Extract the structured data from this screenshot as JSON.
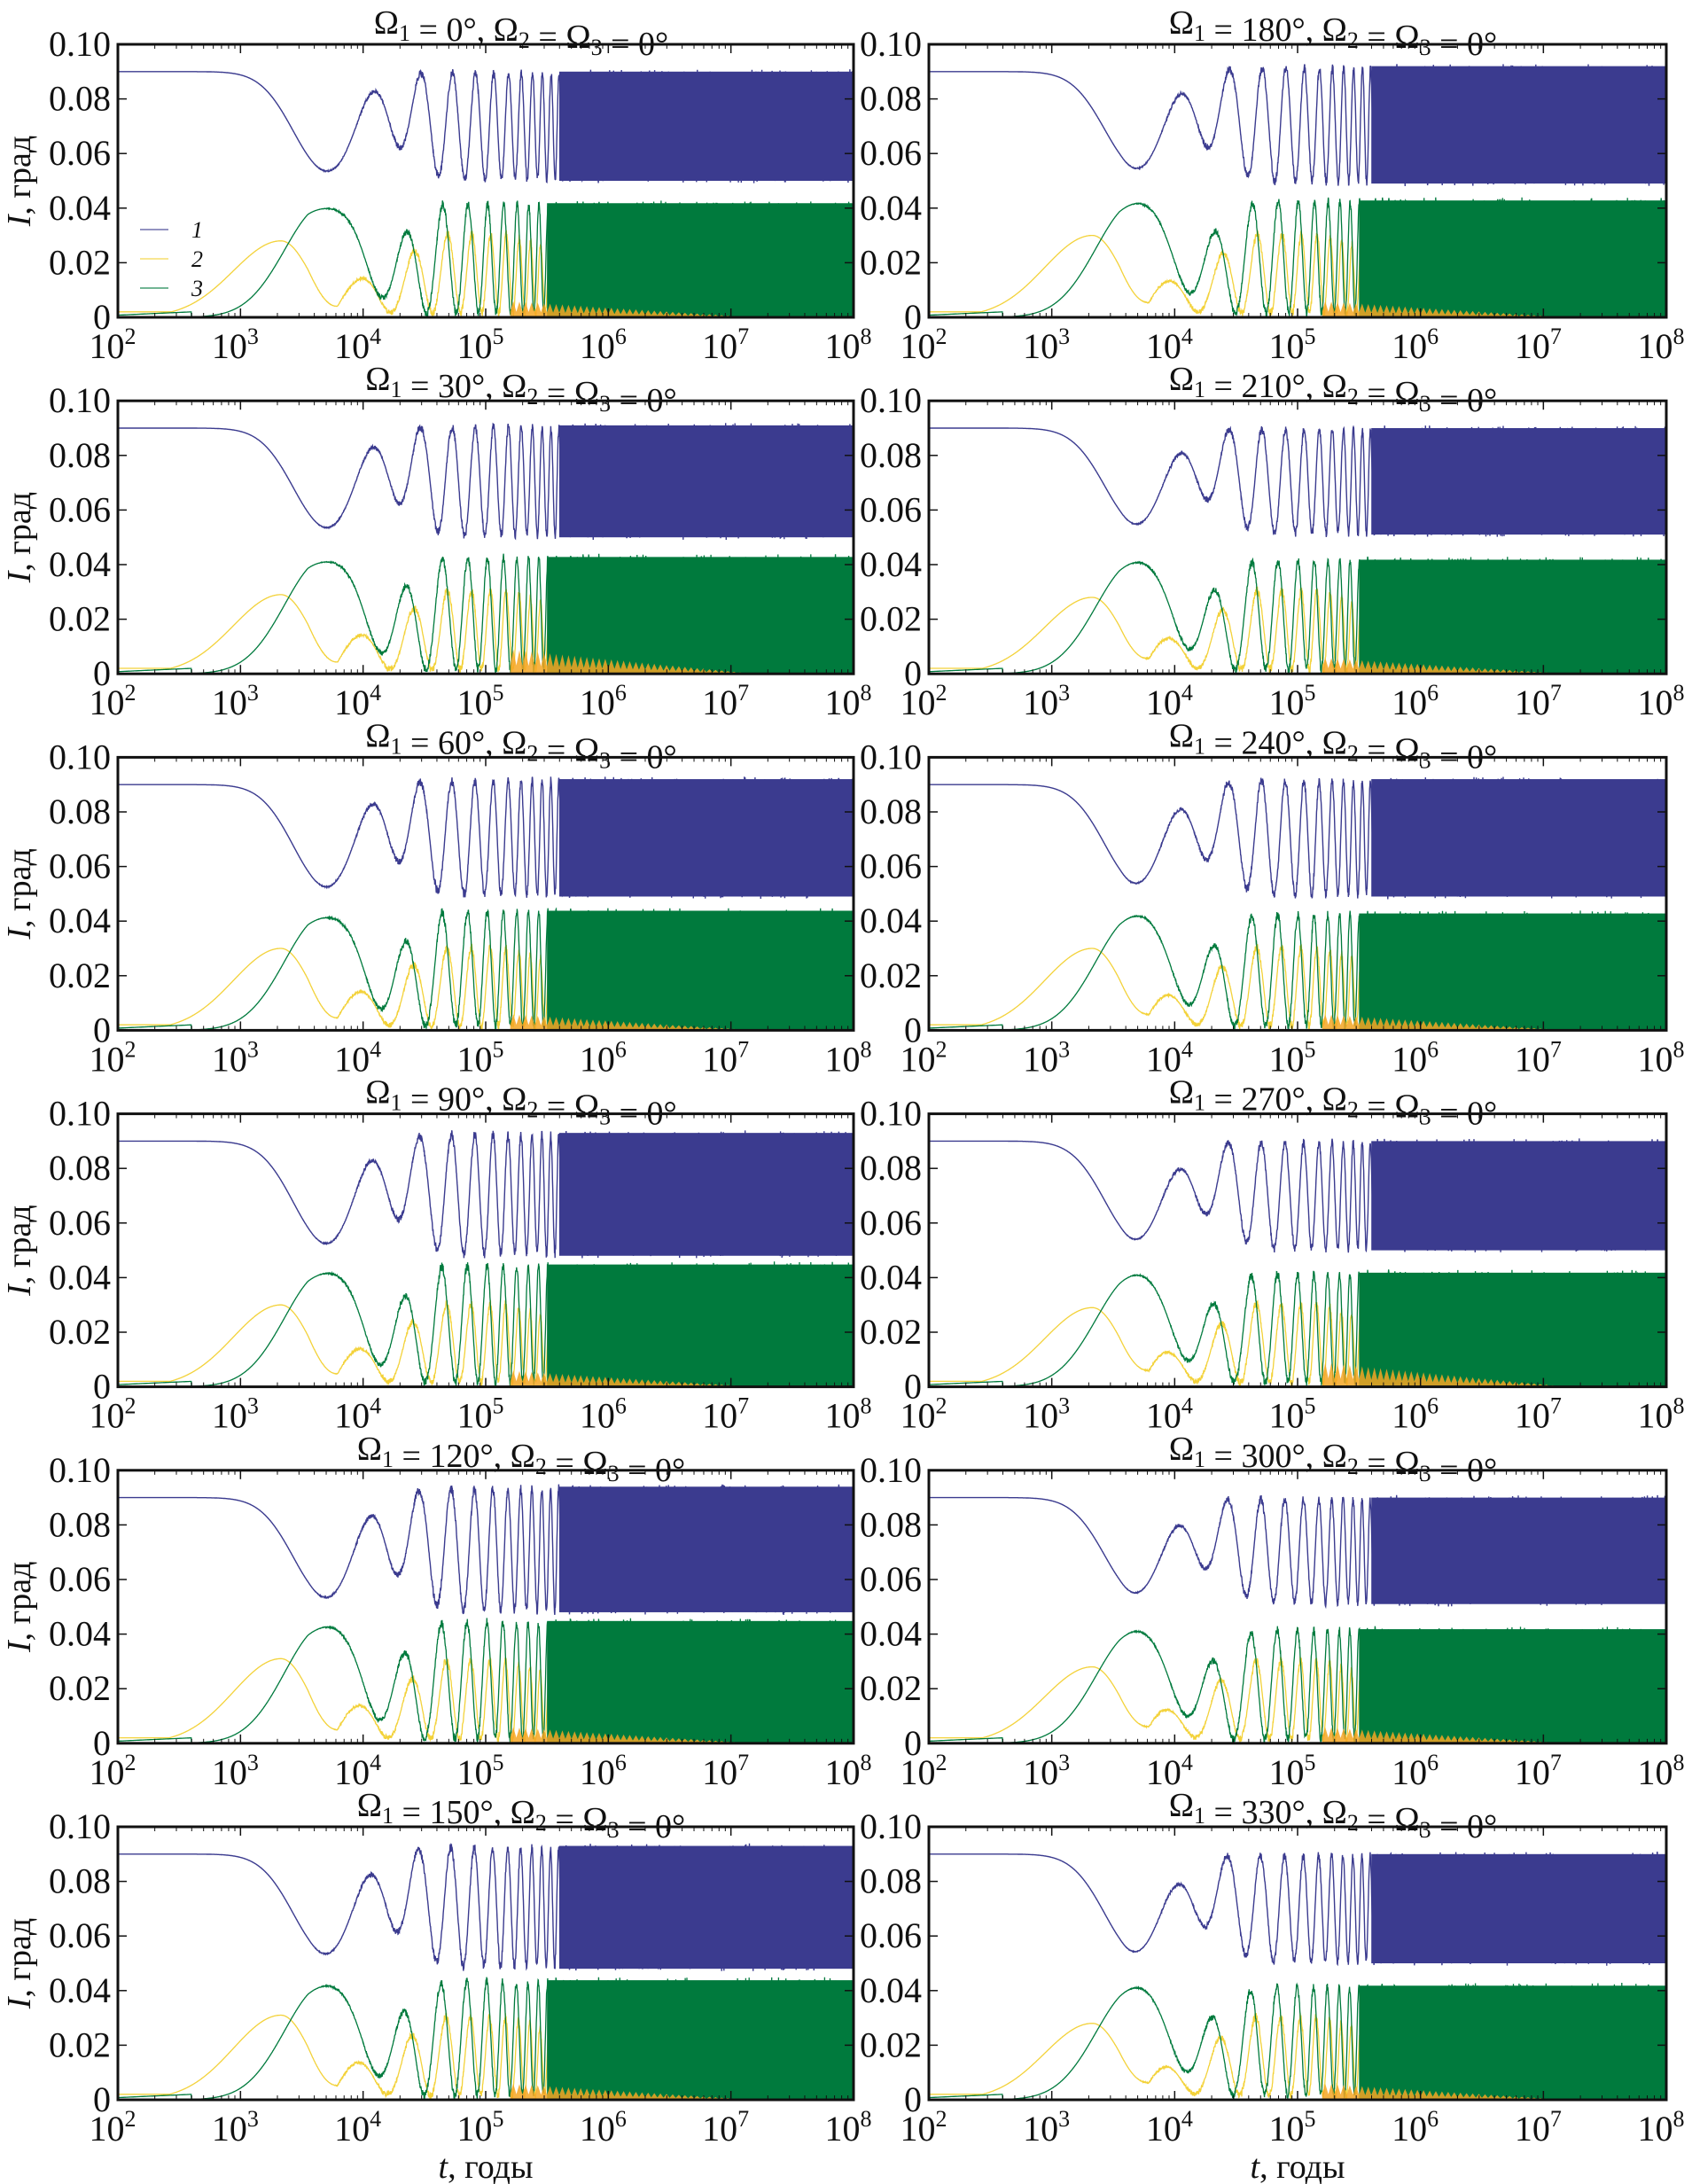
{
  "chart_data": {
    "type": "line",
    "layout": "grid 6 rows x 2 columns",
    "xscale": "log",
    "xlim": [
      100,
      100000000
    ],
    "ylim": [
      0,
      0.1
    ],
    "xticks": [
      100,
      1000,
      10000,
      100000,
      1000000,
      10000000,
      100000000
    ],
    "xtick_labels": [
      [
        "10",
        "2"
      ],
      [
        "10",
        "3"
      ],
      [
        "10",
        "4"
      ],
      [
        "10",
        "5"
      ],
      [
        "10",
        "6"
      ],
      [
        "10",
        "7"
      ],
      [
        "10",
        "8"
      ]
    ],
    "yticks": [
      0,
      0.02,
      0.04,
      0.06,
      0.08,
      0.1
    ],
    "ytick_labels": [
      "0",
      "0.02",
      "0.04",
      "0.06",
      "0.08",
      "0.10"
    ],
    "ylabel": "I, град",
    "ylabel_var": "I",
    "ylabel_unit": ", град",
    "xlabel": "t, годы",
    "xlabel_var": "t",
    "xlabel_unit": ", годы",
    "legend": {
      "placement": "left-lower (first panel only)",
      "entries": [
        {
          "label": "1",
          "color": "#3b3b8f"
        },
        {
          "label": "2",
          "color": "#f3d23a"
        },
        {
          "label": "3",
          "color": "#007a3d"
        }
      ]
    },
    "colors": {
      "series1": "#3b3b8f",
      "series2": "#f3d23a",
      "series2_fill": "#f5a623",
      "series3": "#007a3d"
    },
    "panels": [
      {
        "title": "Ω1 = 0°, Ω2 = Ω3 = 0°",
        "omega1": 0,
        "s1_initial": 0.09,
        "s1_dip": 0.054,
        "s1_band": [
          0.049,
          0.091
        ],
        "s3_peak": 0.041,
        "s3_band": [
          0.0,
          0.043
        ],
        "s2_peak": 0.028,
        "orange_bumps": false
      },
      {
        "title": "Ω1 = 180°, Ω2 = Ω3 = 0°",
        "omega1": 180,
        "s1_initial": 0.09,
        "s1_dip": 0.055,
        "s1_band": [
          0.048,
          0.093
        ],
        "s3_peak": 0.042,
        "s3_band": [
          0.0,
          0.044
        ],
        "s2_peak": 0.03,
        "orange_bumps": false
      },
      {
        "title": "Ω1 = 30°, Ω2 = Ω3 = 0°",
        "omega1": 30,
        "s1_initial": 0.09,
        "s1_dip": 0.054,
        "s1_band": [
          0.049,
          0.092
        ],
        "s3_peak": 0.042,
        "s3_band": [
          0.0,
          0.044
        ],
        "s2_peak": 0.029,
        "orange_bumps": true
      },
      {
        "title": "Ω1 = 210°, Ω2 = Ω3 = 0°",
        "omega1": 210,
        "s1_initial": 0.09,
        "s1_dip": 0.055,
        "s1_band": [
          0.05,
          0.091
        ],
        "s3_peak": 0.041,
        "s3_band": [
          0.0,
          0.043
        ],
        "s2_peak": 0.028,
        "orange_bumps": false
      },
      {
        "title": "Ω1 = 60°, Ω2 = Ω3 = 0°",
        "omega1": 60,
        "s1_initial": 0.09,
        "s1_dip": 0.053,
        "s1_band": [
          0.048,
          0.093
        ],
        "s3_peak": 0.042,
        "s3_band": [
          0.0,
          0.045
        ],
        "s2_peak": 0.03,
        "orange_bumps": false
      },
      {
        "title": "Ω1 = 240°, Ω2 = Ω3 = 0°",
        "omega1": 240,
        "s1_initial": 0.09,
        "s1_dip": 0.054,
        "s1_band": [
          0.048,
          0.093
        ],
        "s3_peak": 0.042,
        "s3_band": [
          0.0,
          0.044
        ],
        "s2_peak": 0.03,
        "orange_bumps": false
      },
      {
        "title": "Ω1 = 90°, Ω2 = Ω3 = 0°",
        "omega1": 90,
        "s1_initial": 0.09,
        "s1_dip": 0.053,
        "s1_band": [
          0.047,
          0.094
        ],
        "s3_peak": 0.042,
        "s3_band": [
          0.0,
          0.046
        ],
        "s2_peak": 0.03,
        "orange_bumps": false
      },
      {
        "title": "Ω1 = 270°, Ω2 = Ω3 = 0°",
        "omega1": 270,
        "s1_initial": 0.09,
        "s1_dip": 0.054,
        "s1_band": [
          0.049,
          0.091
        ],
        "s3_peak": 0.041,
        "s3_band": [
          0.0,
          0.043
        ],
        "s2_peak": 0.029,
        "orange_bumps": true
      },
      {
        "title": "Ω1 = 120°, Ω2 = Ω3 = 0°",
        "omega1": 120,
        "s1_initial": 0.09,
        "s1_dip": 0.054,
        "s1_band": [
          0.047,
          0.095
        ],
        "s3_peak": 0.043,
        "s3_band": [
          0.0,
          0.046
        ],
        "s2_peak": 0.031,
        "orange_bumps": false
      },
      {
        "title": "Ω1 = 300°, Ω2 = Ω3 = 0°",
        "omega1": 300,
        "s1_initial": 0.09,
        "s1_dip": 0.055,
        "s1_band": [
          0.05,
          0.091
        ],
        "s3_peak": 0.041,
        "s3_band": [
          0.0,
          0.043
        ],
        "s2_peak": 0.028,
        "orange_bumps": false
      },
      {
        "title": "Ω1 = 150°, Ω2 = Ω3 = 0°",
        "omega1": 150,
        "s1_initial": 0.09,
        "s1_dip": 0.054,
        "s1_band": [
          0.047,
          0.094
        ],
        "s3_peak": 0.042,
        "s3_band": [
          0.0,
          0.045
        ],
        "s2_peak": 0.031,
        "orange_bumps": false
      },
      {
        "title": "Ω1 = 330°, Ω2 = Ω3 = 0°",
        "omega1": 330,
        "s1_initial": 0.09,
        "s1_dip": 0.054,
        "s1_band": [
          0.049,
          0.091
        ],
        "s3_peak": 0.041,
        "s3_band": [
          0.0,
          0.043
        ],
        "s2_peak": 0.028,
        "orange_bumps": false
      }
    ]
  }
}
